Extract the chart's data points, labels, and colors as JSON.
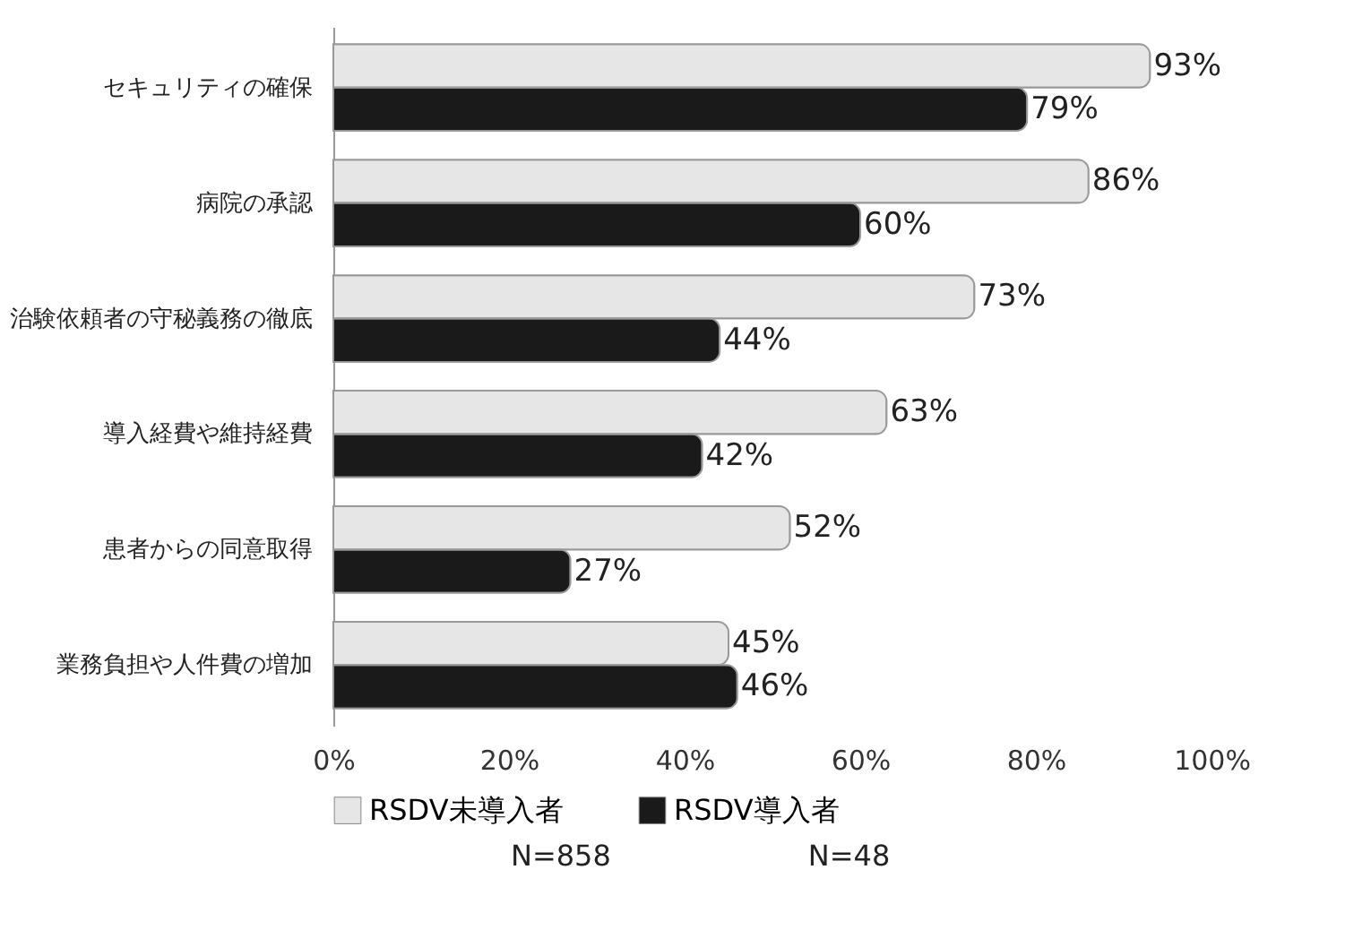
{
  "chart_data": {
    "type": "bar",
    "orientation": "horizontal",
    "categories": [
      "セキュリティの確保",
      "病院の承認",
      "治験依頼者の守秘義務の徹底",
      "導入経費や維持経費",
      "患者からの同意取得",
      "業務負担や人件費の増加"
    ],
    "series": [
      {
        "name": "RSDV未導入者",
        "color": "#e6e6e6",
        "values": [
          93,
          86,
          73,
          63,
          52,
          45
        ],
        "value_labels": [
          "93%",
          "86%",
          "73%",
          "63%",
          "52%",
          "45%"
        ]
      },
      {
        "name": "RSDV導入者",
        "color": "#1a1a1a",
        "values": [
          79,
          60,
          44,
          42,
          27,
          46
        ],
        "value_labels": [
          "79%",
          "60%",
          "44%",
          "42%",
          "27%",
          "46%"
        ]
      }
    ],
    "xlim": [
      0,
      100
    ],
    "xticks": [
      {
        "value": 0,
        "label": "0%"
      },
      {
        "value": 20,
        "label": "20%"
      },
      {
        "value": 40,
        "label": "40%"
      },
      {
        "value": 60,
        "label": "60%"
      },
      {
        "value": 80,
        "label": "80%"
      },
      {
        "value": 100,
        "label": "100%"
      }
    ],
    "grid": false,
    "legend": "bottom",
    "annotations": [
      "N=858",
      "N=48"
    ]
  }
}
